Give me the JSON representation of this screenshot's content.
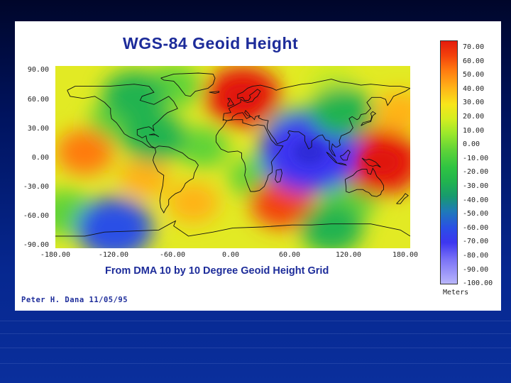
{
  "figure": {
    "title": "WGS-84 Geoid Height",
    "subtitle": "From DMA 10 by 10 Degree Geoid Height Grid",
    "credit": "Peter H. Dana 11/05/95"
  },
  "map": {
    "lat_ticks": [
      "90.00",
      "60.00",
      "30.00",
      "0.00",
      "-30.00",
      "-60.00",
      "-90.00"
    ],
    "lon_ticks": [
      "-180.00",
      "-120.00",
      "-60.00",
      "0.00",
      "60.00",
      "120.00",
      "180.00"
    ],
    "lat_range": [
      -90,
      90
    ],
    "lon_range": [
      -180,
      180
    ],
    "highs": [
      {
        "lon": 10,
        "lat": 60,
        "value": 60
      },
      {
        "lon": 150,
        "lat": -5,
        "value": 70
      },
      {
        "lon": -150,
        "lat": 5,
        "value": 30
      },
      {
        "lon": -40,
        "lat": -45,
        "value": 20
      },
      {
        "lon": 50,
        "lat": -45,
        "value": 40
      },
      {
        "lon": 170,
        "lat": 45,
        "value": 20
      },
      {
        "lon": -90,
        "lat": -20,
        "value": 20
      }
    ],
    "lows": [
      {
        "lon": 78,
        "lat": 5,
        "value": -100
      },
      {
        "lon": -80,
        "lat": 20,
        "value": -40
      },
      {
        "lon": 110,
        "lat": 45,
        "value": -40
      },
      {
        "lon": -100,
        "lat": 60,
        "value": -40
      },
      {
        "lon": -120,
        "lat": -70,
        "value": -60
      },
      {
        "lon": 100,
        "lat": -70,
        "value": -40
      }
    ]
  },
  "colorbar": {
    "labels": [
      "70.00",
      "60.00",
      "50.00",
      "40.00",
      "30.00",
      "20.00",
      "10.00",
      "0.00",
      "-10.00",
      "-20.00",
      "-30.00",
      "-40.00",
      "-50.00",
      "-60.00",
      "-70.00",
      "-80.00",
      "-90.00",
      "-100.00"
    ],
    "units": "Meters",
    "colors": [
      "#e51b0c",
      "#ff7a10",
      "#f8e51a",
      "#5ed338",
      "#1e7bb8",
      "#3d36f0",
      "#b9b6fb"
    ]
  },
  "palette": {
    "title_color": "#1d2c9a",
    "background_top": "#00062a",
    "background_bottom": "#0a2f9c"
  }
}
